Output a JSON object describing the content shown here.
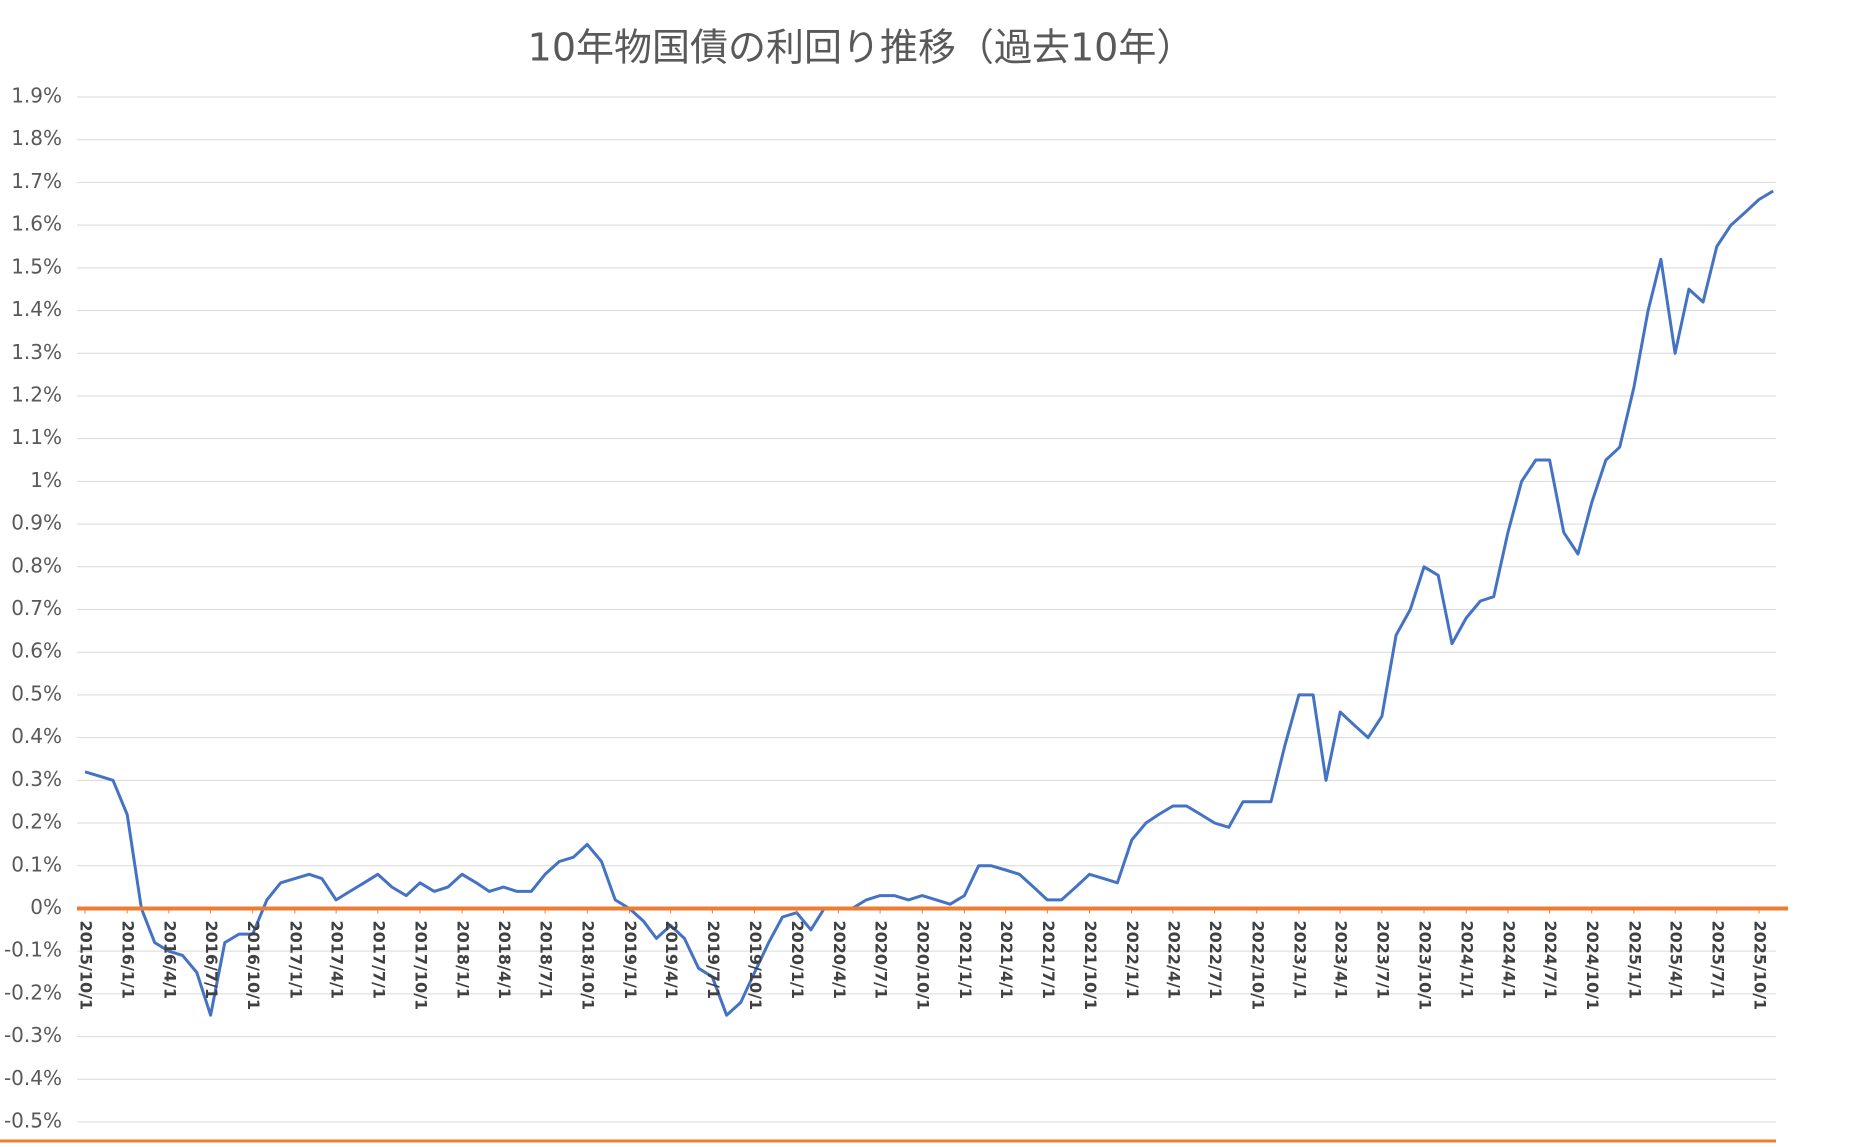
{
  "chart_data": {
    "type": "line",
    "title": "10年物国債の利回り推移（過去10年）",
    "color": "#4472c4",
    "axis_color": "#ed7d31",
    "grid": true,
    "x": [
      "2015/10/1",
      "2015/11/1",
      "2015/12/1",
      "2016/1/1",
      "2016/2/1",
      "2016/3/1",
      "2016/4/1",
      "2016/5/1",
      "2016/6/1",
      "2016/7/1",
      "2016/8/1",
      "2016/9/1",
      "2016/10/1",
      "2016/11/1",
      "2016/12/1",
      "2017/1/1",
      "2017/2/1",
      "2017/3/1",
      "2017/4/1",
      "2017/5/1",
      "2017/6/1",
      "2017/7/1",
      "2017/8/1",
      "2017/9/1",
      "2017/10/1",
      "2017/11/1",
      "2017/12/1",
      "2018/1/1",
      "2018/2/1",
      "2018/3/1",
      "2018/4/1",
      "2018/5/1",
      "2018/6/1",
      "2018/7/1",
      "2018/8/1",
      "2018/9/1",
      "2018/10/1",
      "2018/11/1",
      "2018/12/1",
      "2019/1/1",
      "2019/2/1",
      "2019/3/1",
      "2019/4/1",
      "2019/5/1",
      "2019/6/1",
      "2019/7/1",
      "2019/8/1",
      "2019/9/1",
      "2019/10/1",
      "2019/11/1",
      "2019/12/1",
      "2020/1/1",
      "2020/2/1",
      "2020/3/1",
      "2020/4/1",
      "2020/5/1",
      "2020/6/1",
      "2020/7/1",
      "2020/8/1",
      "2020/9/1",
      "2020/10/1",
      "2020/11/1",
      "2020/12/1",
      "2021/1/1",
      "2021/2/1",
      "2021/3/1",
      "2021/4/1",
      "2021/5/1",
      "2021/6/1",
      "2021/7/1",
      "2021/8/1",
      "2021/9/1",
      "2021/10/1",
      "2021/11/1",
      "2021/12/1",
      "2022/1/1",
      "2022/2/1",
      "2022/3/1",
      "2022/4/1",
      "2022/5/1",
      "2022/6/1",
      "2022/7/1",
      "2022/8/1",
      "2022/9/1",
      "2022/10/1",
      "2022/11/1",
      "2022/12/1",
      "2023/1/1",
      "2023/2/1",
      "2023/3/1",
      "2023/4/1",
      "2023/5/1",
      "2023/6/1",
      "2023/7/1",
      "2023/8/1",
      "2023/9/1",
      "2023/10/1",
      "2023/11/1",
      "2023/12/1",
      "2024/1/1",
      "2024/2/1",
      "2024/3/1",
      "2024/4/1",
      "2024/5/1",
      "2024/6/1",
      "2024/7/1",
      "2024/8/1",
      "2024/9/1",
      "2024/10/1",
      "2024/11/1",
      "2024/12/1",
      "2025/1/1",
      "2025/2/1",
      "2025/3/1",
      "2025/4/1",
      "2025/5/1",
      "2025/6/1",
      "2025/7/1",
      "2025/8/1",
      "2025/9/1",
      "2025/10/1",
      "2025/11/1"
    ],
    "values": [
      0.32,
      0.31,
      0.3,
      0.22,
      0.0,
      -0.08,
      -0.1,
      -0.11,
      -0.15,
      -0.25,
      -0.08,
      -0.06,
      -0.06,
      0.02,
      0.06,
      0.07,
      0.08,
      0.07,
      0.02,
      0.04,
      0.06,
      0.08,
      0.05,
      0.03,
      0.06,
      0.04,
      0.05,
      0.08,
      0.06,
      0.04,
      0.05,
      0.04,
      0.04,
      0.08,
      0.11,
      0.12,
      0.15,
      0.11,
      0.02,
      0.0,
      -0.03,
      -0.07,
      -0.04,
      -0.07,
      -0.14,
      -0.16,
      -0.25,
      -0.22,
      -0.15,
      -0.08,
      -0.02,
      -0.01,
      -0.05,
      0.0,
      0.0,
      0.0,
      0.02,
      0.03,
      0.03,
      0.02,
      0.03,
      0.02,
      0.01,
      0.03,
      0.1,
      0.1,
      0.09,
      0.08,
      0.05,
      0.02,
      0.02,
      0.05,
      0.08,
      0.07,
      0.06,
      0.16,
      0.2,
      0.22,
      0.24,
      0.24,
      0.22,
      0.2,
      0.19,
      0.25,
      0.25,
      0.25,
      0.38,
      0.5,
      0.5,
      0.3,
      0.46,
      0.43,
      0.4,
      0.45,
      0.64,
      0.7,
      0.8,
      0.78,
      0.62,
      0.68,
      0.72,
      0.73,
      0.88,
      1.0,
      1.05,
      1.05,
      0.88,
      0.83,
      0.95,
      1.05,
      1.08,
      1.22,
      1.4,
      1.52,
      1.3,
      1.45,
      1.42,
      1.55,
      1.6,
      1.63,
      1.66,
      1.68
    ],
    "xticks": [
      "2015/10/1",
      "2016/1/1",
      "2016/4/1",
      "2016/7/1",
      "2016/10/1",
      "2017/1/1",
      "2017/4/1",
      "2017/7/1",
      "2017/10/1",
      "2018/1/1",
      "2018/4/1",
      "2018/7/1",
      "2018/10/1",
      "2019/1/1",
      "2019/4/1",
      "2019/7/1",
      "2019/10/1",
      "2020/1/1",
      "2020/4/1",
      "2020/7/1",
      "2020/10/1",
      "2021/1/1",
      "2021/4/1",
      "2021/7/1",
      "2021/10/1",
      "2022/1/1",
      "2022/4/1",
      "2022/7/1",
      "2022/10/1",
      "2023/1/1",
      "2023/4/1",
      "2023/7/1",
      "2023/10/1",
      "2024/1/1",
      "2024/4/1",
      "2024/7/1",
      "2024/10/1",
      "2025/1/1",
      "2025/4/1",
      "2025/7/1",
      "2025/10/1"
    ],
    "ylim": [
      -0.5,
      1.9
    ],
    "yticks": [
      {
        "value": -0.5,
        "label": "-0.5%"
      },
      {
        "value": -0.4,
        "label": "-0.4%"
      },
      {
        "value": -0.3,
        "label": "-0.3%"
      },
      {
        "value": -0.2,
        "label": "-0.2%"
      },
      {
        "value": -0.1,
        "label": "-0.1%"
      },
      {
        "value": 0,
        "label": "0%"
      },
      {
        "value": 0.1,
        "label": "0.1%"
      },
      {
        "value": 0.2,
        "label": "0.2%"
      },
      {
        "value": 0.3,
        "label": "0.3%"
      },
      {
        "value": 0.4,
        "label": "0.4%"
      },
      {
        "value": 0.5,
        "label": "0.5%"
      },
      {
        "value": 0.6,
        "label": "0.6%"
      },
      {
        "value": 0.7,
        "label": "0.7%"
      },
      {
        "value": 0.8,
        "label": "0.8%"
      },
      {
        "value": 0.9,
        "label": "0.9%"
      },
      {
        "value": 1,
        "label": "1%"
      },
      {
        "value": 1.1,
        "label": "1.1%"
      },
      {
        "value": 1.2,
        "label": "1.2%"
      },
      {
        "value": 1.3,
        "label": "1.3%"
      },
      {
        "value": 1.4,
        "label": "1.4%"
      },
      {
        "value": 1.5,
        "label": "1.5%"
      },
      {
        "value": 1.6,
        "label": "1.6%"
      },
      {
        "value": 1.7,
        "label": "1.7%"
      },
      {
        "value": 1.8,
        "label": "1.8%"
      },
      {
        "value": 1.9,
        "label": "1.9%"
      }
    ]
  }
}
